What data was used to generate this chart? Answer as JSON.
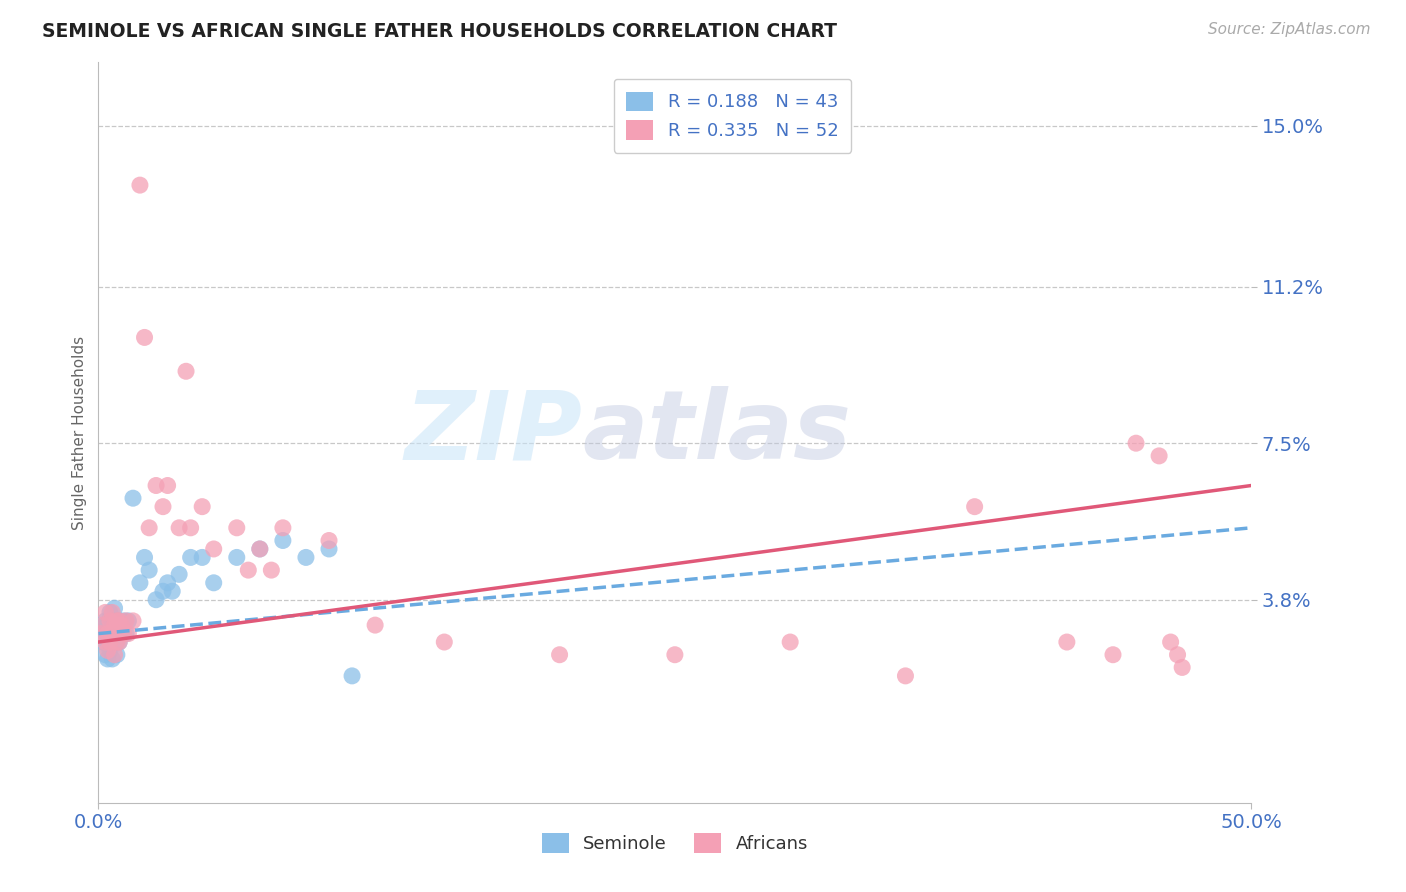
{
  "title": "SEMINOLE VS AFRICAN SINGLE FATHER HOUSEHOLDS CORRELATION CHART",
  "source": "Source: ZipAtlas.com",
  "ylabel": "Single Father Households",
  "xlim": [
    0.0,
    0.5
  ],
  "ylim": [
    -0.01,
    0.165
  ],
  "xtick_vals": [
    0.0,
    0.5
  ],
  "xticklabels": [
    "0.0%",
    "50.0%"
  ],
  "ytick_vals": [
    0.038,
    0.075,
    0.112,
    0.15
  ],
  "yticklabels": [
    "3.8%",
    "7.5%",
    "11.2%",
    "15.0%"
  ],
  "seminole_color": "#8bbfe8",
  "african_color": "#f4a0b5",
  "trend_african_color": "#e05878",
  "trend_seminole_color": "#6aaae0",
  "seminole_R": "0.188",
  "seminole_N": "43",
  "african_R": "0.335",
  "african_N": "52",
  "background_color": "#ffffff",
  "grid_color": "#c8c8c8",
  "seminole_x": [
    0.001,
    0.002,
    0.002,
    0.003,
    0.003,
    0.003,
    0.004,
    0.004,
    0.004,
    0.005,
    0.005,
    0.005,
    0.006,
    0.006,
    0.006,
    0.007,
    0.007,
    0.008,
    0.008,
    0.009,
    0.009,
    0.01,
    0.011,
    0.012,
    0.013,
    0.015,
    0.018,
    0.02,
    0.022,
    0.025,
    0.028,
    0.03,
    0.032,
    0.035,
    0.04,
    0.045,
    0.05,
    0.06,
    0.07,
    0.08,
    0.09,
    0.1,
    0.11
  ],
  "seminole_y": [
    0.03,
    0.028,
    0.032,
    0.033,
    0.03,
    0.025,
    0.032,
    0.028,
    0.024,
    0.035,
    0.03,
    0.026,
    0.033,
    0.028,
    0.024,
    0.032,
    0.036,
    0.03,
    0.025,
    0.033,
    0.028,
    0.031,
    0.033,
    0.03,
    0.033,
    0.062,
    0.042,
    0.048,
    0.045,
    0.038,
    0.04,
    0.042,
    0.04,
    0.044,
    0.048,
    0.048,
    0.042,
    0.048,
    0.05,
    0.052,
    0.048,
    0.05,
    0.02
  ],
  "african_x": [
    0.001,
    0.002,
    0.003,
    0.003,
    0.004,
    0.004,
    0.005,
    0.005,
    0.006,
    0.006,
    0.007,
    0.007,
    0.008,
    0.008,
    0.009,
    0.009,
    0.01,
    0.011,
    0.012,
    0.013,
    0.015,
    0.018,
    0.02,
    0.022,
    0.025,
    0.028,
    0.03,
    0.035,
    0.038,
    0.04,
    0.045,
    0.05,
    0.06,
    0.065,
    0.07,
    0.075,
    0.08,
    0.1,
    0.12,
    0.15,
    0.2,
    0.25,
    0.3,
    0.35,
    0.38,
    0.42,
    0.44,
    0.45,
    0.46,
    0.465,
    0.468,
    0.47
  ],
  "african_y": [
    0.03,
    0.032,
    0.028,
    0.035,
    0.03,
    0.026,
    0.033,
    0.028,
    0.035,
    0.03,
    0.032,
    0.025,
    0.033,
    0.028,
    0.033,
    0.028,
    0.032,
    0.03,
    0.033,
    0.03,
    0.033,
    0.136,
    0.1,
    0.055,
    0.065,
    0.06,
    0.065,
    0.055,
    0.092,
    0.055,
    0.06,
    0.05,
    0.055,
    0.045,
    0.05,
    0.045,
    0.055,
    0.052,
    0.032,
    0.028,
    0.025,
    0.025,
    0.028,
    0.02,
    0.06,
    0.028,
    0.025,
    0.075,
    0.072,
    0.028,
    0.025,
    0.022
  ],
  "seminole_trend_m": 0.05,
  "seminole_trend_b": 0.03,
  "african_trend_m": 0.07,
  "african_trend_b": 0.028
}
